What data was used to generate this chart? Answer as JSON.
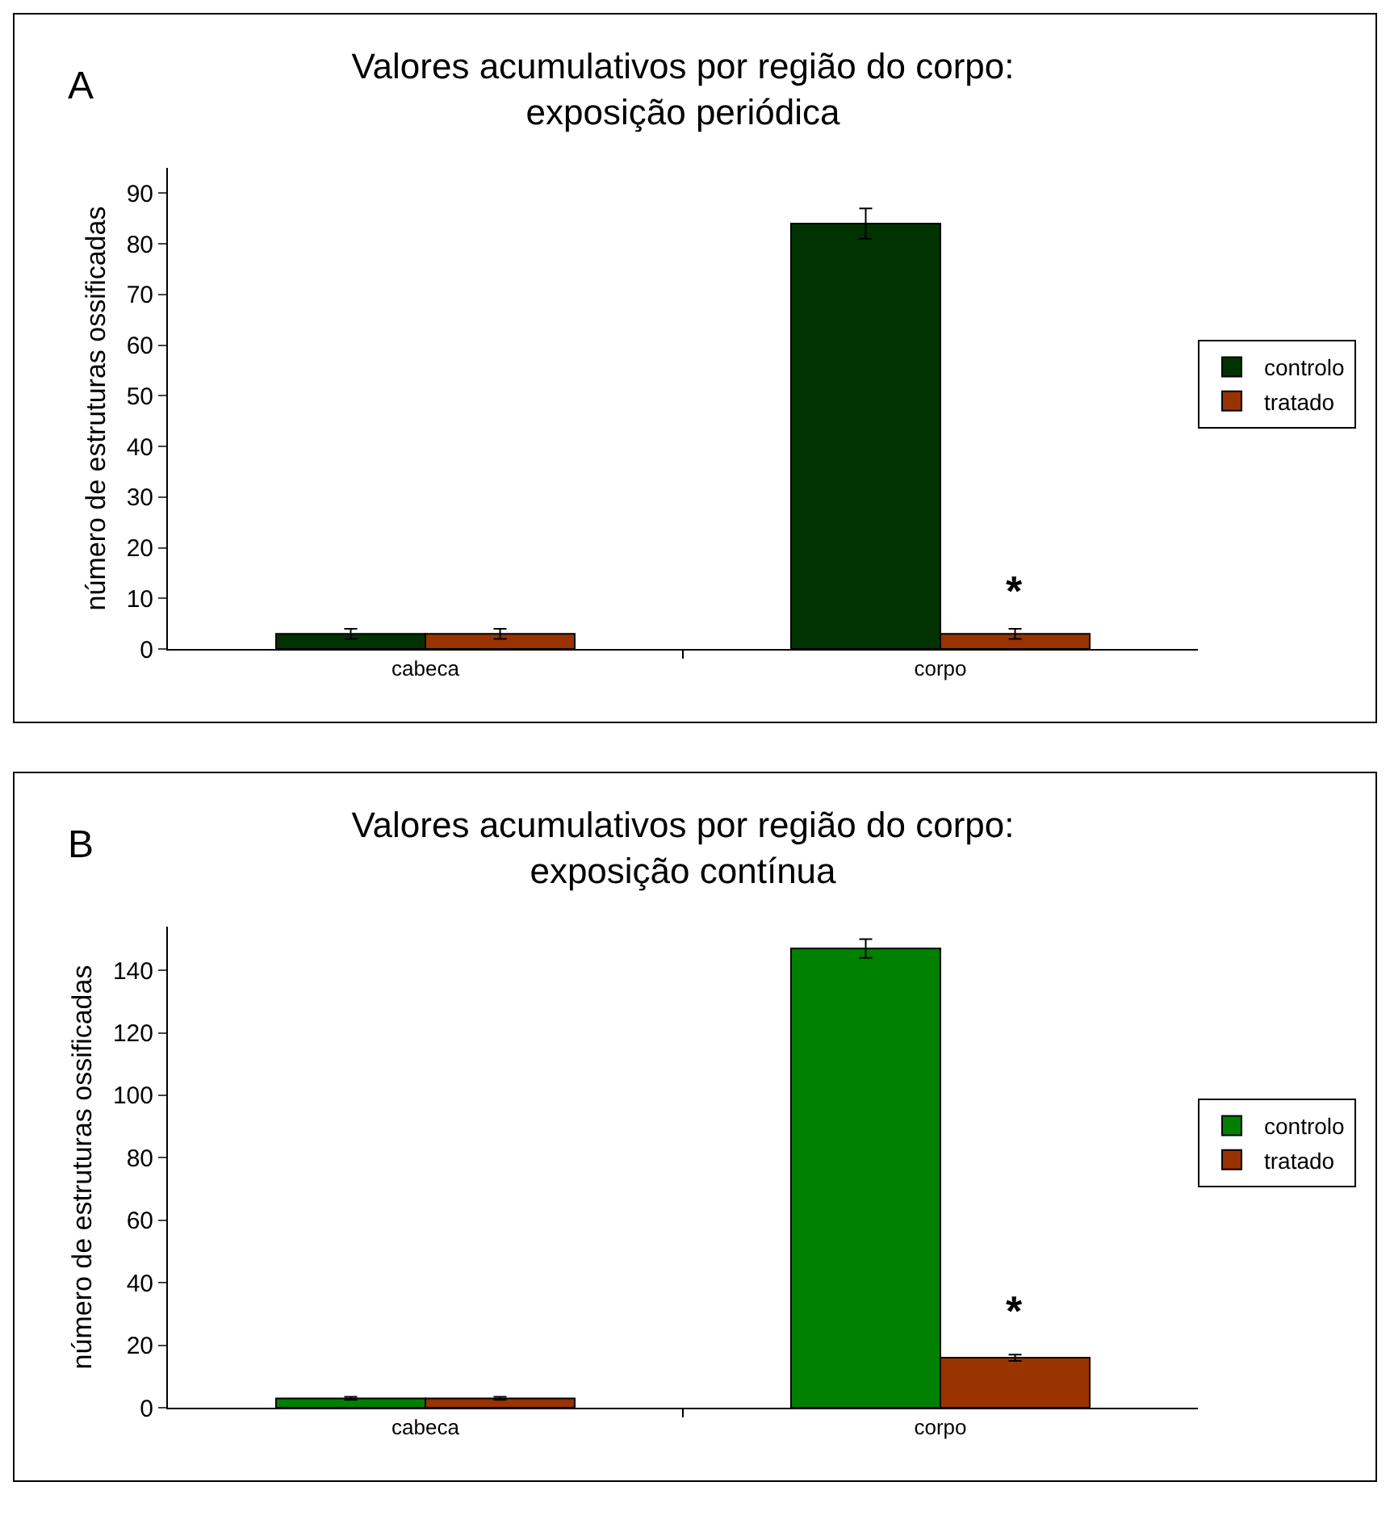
{
  "chart_data": [
    {
      "type": "bar",
      "title": "Valores acumulativos por região do corpo:\nexposição periódica",
      "ylabel": "número de estruturas ossificadas",
      "categories": [
        "cabeca",
        "corpo"
      ],
      "series": [
        {
          "name": "controlo",
          "color": "#003300",
          "values": [
            3,
            84
          ],
          "errors": [
            1,
            3
          ]
        },
        {
          "name": "tratado",
          "color": "#993300",
          "values": [
            3,
            3
          ],
          "errors": [
            1,
            1
          ]
        }
      ],
      "ylim": [
        0,
        95
      ],
      "yticks": [
        0,
        10,
        20,
        30,
        40,
        50,
        60,
        70,
        80,
        90
      ],
      "grid": false,
      "legend": "right",
      "annotations": [
        "A",
        {
          "text": "*",
          "x": "corpo",
          "y": 6
        }
      ]
    },
    {
      "type": "bar",
      "title": "Valores acumulativos por região do corpo:\nexposição contínua",
      "ylabel": "número de estruturas ossificadas",
      "categories": [
        "cabeca",
        "corpo"
      ],
      "series": [
        {
          "name": "controlo",
          "color": "#008000",
          "values": [
            3,
            147
          ],
          "errors": [
            0.5,
            3
          ]
        },
        {
          "name": "tratado",
          "color": "#993300",
          "values": [
            3,
            16
          ],
          "errors": [
            0.5,
            1
          ]
        }
      ],
      "ylim": [
        0,
        154
      ],
      "yticks": [
        0,
        20,
        40,
        60,
        80,
        100,
        120,
        140
      ],
      "grid": false,
      "legend": "right",
      "annotations": [
        "B",
        {
          "text": "*",
          "x": "corpo",
          "y": 22
        }
      ]
    }
  ]
}
